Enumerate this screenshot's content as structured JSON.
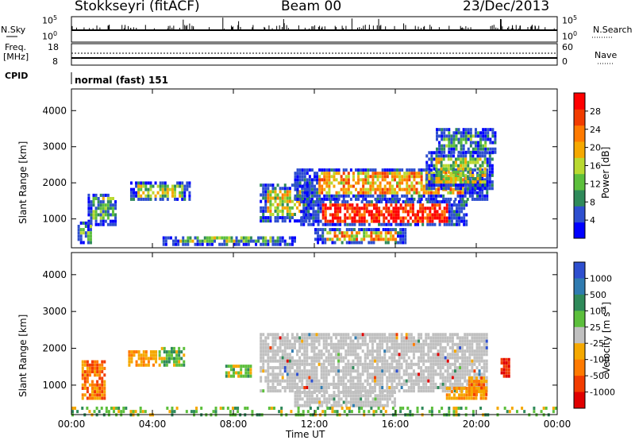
{
  "header": {
    "station": "Stokkseyri (fitACF)",
    "beam": "Beam 00",
    "date": "23/Dec/2013",
    "cpid_label": "CPID",
    "cpid_value": "normal (fast) 151"
  },
  "strip_labels": {
    "nsky": "N.Sky",
    "nsky_top": "10^5",
    "nsky_bottom": "10^0",
    "nsearch": "N.Search",
    "nsearch_top": "10^5",
    "nsearch_bottom": "10^0",
    "freq": "Freq.",
    "freq_unit": "[MHz]",
    "freq_top": "18",
    "freq_bottom": "8",
    "nave": "Nave",
    "nave_top": "60",
    "nave_bottom": "0"
  },
  "chart_data": [
    {
      "type": "heatmap",
      "name": "power",
      "ylabel": "Slant Range [km]",
      "xlabel": "Time UT",
      "x_ticks": [
        "00:00",
        "04:00",
        "08:00",
        "12:00",
        "16:00",
        "20:00",
        "00:00"
      ],
      "y_ticks": [
        1000,
        2000,
        3000,
        4000
      ],
      "ylim": [
        200,
        4600
      ],
      "xlim_hours": [
        0,
        24
      ],
      "colorbar": {
        "label": "Power [dB]",
        "ticks": [
          "4",
          "8",
          "12",
          "16",
          "20",
          "24",
          "28"
        ],
        "range": [
          0,
          32
        ],
        "colors": [
          "#0000ff",
          "#2e4fcf",
          "#2f8a5a",
          "#5cbf3c",
          "#b9d930",
          "#f5a800",
          "#ff7a00",
          "#f23c00",
          "#ff0000"
        ]
      }
    },
    {
      "type": "heatmap",
      "name": "velocity",
      "ylabel": "Slant Range [km]",
      "xlabel": "Time UT",
      "x_ticks": [
        "00:00",
        "04:00",
        "08:00",
        "12:00",
        "16:00",
        "20:00",
        "00:00"
      ],
      "y_ticks": [
        1000,
        2000,
        3000,
        4000
      ],
      "ylim": [
        200,
        4600
      ],
      "xlim_hours": [
        0,
        24
      ],
      "ground_scatter_color": "#c0c0c0",
      "colorbar": {
        "label": "Velocity [m s-1]",
        "ticks": [
          "1000",
          "500",
          "100",
          "25",
          "-25",
          "-100",
          "-500",
          "-1000"
        ],
        "colors": [
          "#2e4fcf",
          "#2f7bb0",
          "#2f8a5a",
          "#5cbf3c",
          "#c0c0c0",
          "#f5a800",
          "#ff7a00",
          "#f23c00",
          "#e00000"
        ]
      }
    }
  ],
  "power_regions": [
    {
      "t0": 0.8,
      "t1": 2.2,
      "r0": 800,
      "r1": 1700,
      "level": 0.35
    },
    {
      "t0": 2.9,
      "t1": 5.8,
      "r0": 1500,
      "r1": 2000,
      "level": 0.45
    },
    {
      "t0": 0.3,
      "t1": 1.0,
      "r0": 300,
      "r1": 900,
      "level": 0.3
    },
    {
      "t0": 9.3,
      "t1": 11.8,
      "r0": 900,
      "r1": 1900,
      "level": 0.5
    },
    {
      "t0": 11.0,
      "t1": 20.5,
      "r0": 1500,
      "r1": 2400,
      "level": 0.65
    },
    {
      "t0": 11.3,
      "t1": 19.5,
      "r0": 800,
      "r1": 1500,
      "level": 0.9
    },
    {
      "t0": 17.5,
      "t1": 20.8,
      "r0": 1800,
      "r1": 2800,
      "level": 0.45
    },
    {
      "t0": 18.0,
      "t1": 21.0,
      "r0": 2800,
      "r1": 3500,
      "level": 0.25
    },
    {
      "t0": 12.0,
      "t1": 16.5,
      "r0": 300,
      "r1": 700,
      "level": 0.6
    },
    {
      "t0": 4.5,
      "t1": 11.0,
      "r0": 250,
      "r1": 500,
      "level": 0.35
    }
  ],
  "velocity_regions": [
    {
      "t0": 0.5,
      "t1": 1.6,
      "r0": 600,
      "r1": 1600,
      "cls": "neg"
    },
    {
      "t0": 2.8,
      "t1": 4.2,
      "r0": 1500,
      "r1": 1900,
      "cls": "negsmall"
    },
    {
      "t0": 4.3,
      "t1": 5.6,
      "r0": 1500,
      "r1": 2000,
      "cls": "possmall"
    },
    {
      "t0": 7.6,
      "t1": 8.8,
      "r0": 1200,
      "r1": 1500,
      "cls": "possmall"
    },
    {
      "t0": 9.3,
      "t1": 20.5,
      "r0": 800,
      "r1": 2400,
      "cls": "gs"
    },
    {
      "t0": 11.0,
      "t1": 16.0,
      "r0": 400,
      "r1": 800,
      "cls": "gs"
    },
    {
      "t0": 18.5,
      "t1": 20.5,
      "r0": 600,
      "r1": 900,
      "cls": "negsmall"
    },
    {
      "t0": 19.6,
      "t1": 20.5,
      "r0": 700,
      "r1": 1200,
      "cls": "neg"
    },
    {
      "t0": 21.2,
      "t1": 21.6,
      "r0": 1200,
      "r1": 1700,
      "cls": "negbig"
    },
    {
      "t0": 0.0,
      "t1": 24.0,
      "r0": 150,
      "r1": 400,
      "cls": "possmall"
    }
  ]
}
